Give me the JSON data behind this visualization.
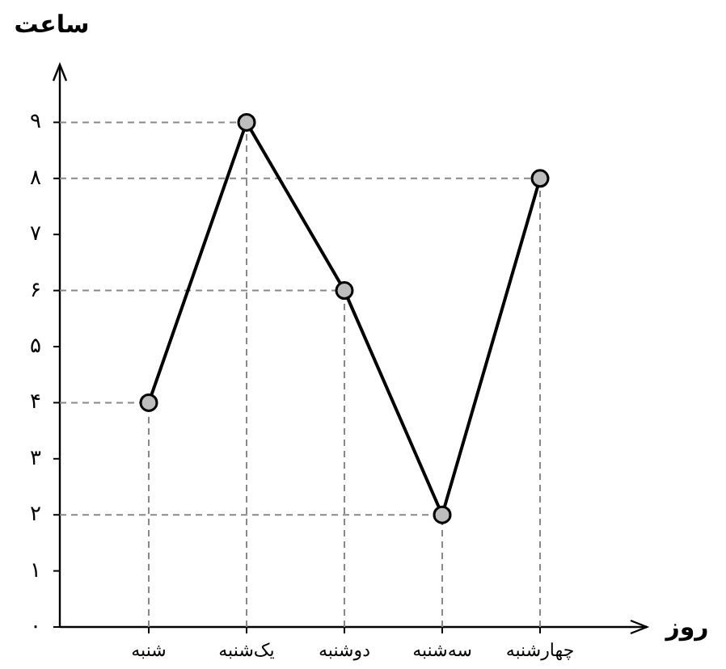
{
  "chart_data": {
    "type": "line",
    "xlabel": "روز",
    "ylabel": "ساعت",
    "categories": [
      "شنبه",
      "یک‌شنبه",
      "دوشنبه",
      "سه‌شنبه",
      "چهارشنبه"
    ],
    "series": [
      {
        "color": "#000000",
        "values": [
          4,
          9,
          6,
          2,
          8
        ]
      }
    ],
    "ylim": [
      0,
      10
    ],
    "yticks": [
      {
        "value": 0,
        "label": "۰"
      },
      {
        "value": 1,
        "label": "۱"
      },
      {
        "value": 2,
        "label": "۲"
      },
      {
        "value": 3,
        "label": "۳"
      },
      {
        "value": 4,
        "label": "۴"
      },
      {
        "value": 5,
        "label": "۵"
      },
      {
        "value": 6,
        "label": "۶"
      },
      {
        "value": 7,
        "label": "۷"
      },
      {
        "value": 8,
        "label": "۸"
      },
      {
        "value": 9,
        "label": "۹"
      }
    ],
    "ref_lines": [
      {
        "axis": "y",
        "value": 4,
        "color": "#888888",
        "line_style": "dashed"
      },
      {
        "axis": "y",
        "value": 9,
        "color": "#888888",
        "line_style": "dashed"
      },
      {
        "axis": "y",
        "value": 6,
        "color": "#888888",
        "line_style": "dashed"
      },
      {
        "axis": "y",
        "value": 2,
        "color": "#888888",
        "line_style": "dashed"
      },
      {
        "axis": "y",
        "value": 8,
        "color": "#888888",
        "line_style": "dashed"
      },
      {
        "axis": "x",
        "value": "شنبه",
        "color": "#888888",
        "line_style": "dashed"
      },
      {
        "axis": "x",
        "value": "یک‌شنبه",
        "color": "#888888",
        "line_style": "dashed"
      },
      {
        "axis": "x",
        "value": "دوشنبه",
        "color": "#888888",
        "line_style": "dashed"
      },
      {
        "axis": "x",
        "value": "سه‌شنبه",
        "color": "#888888",
        "line_style": "dashed"
      },
      {
        "axis": "x",
        "value": "چهارشنبه",
        "color": "#888888",
        "line_style": "dashed"
      }
    ],
    "marker": "circle",
    "line_style": "solid",
    "grid": false
  }
}
